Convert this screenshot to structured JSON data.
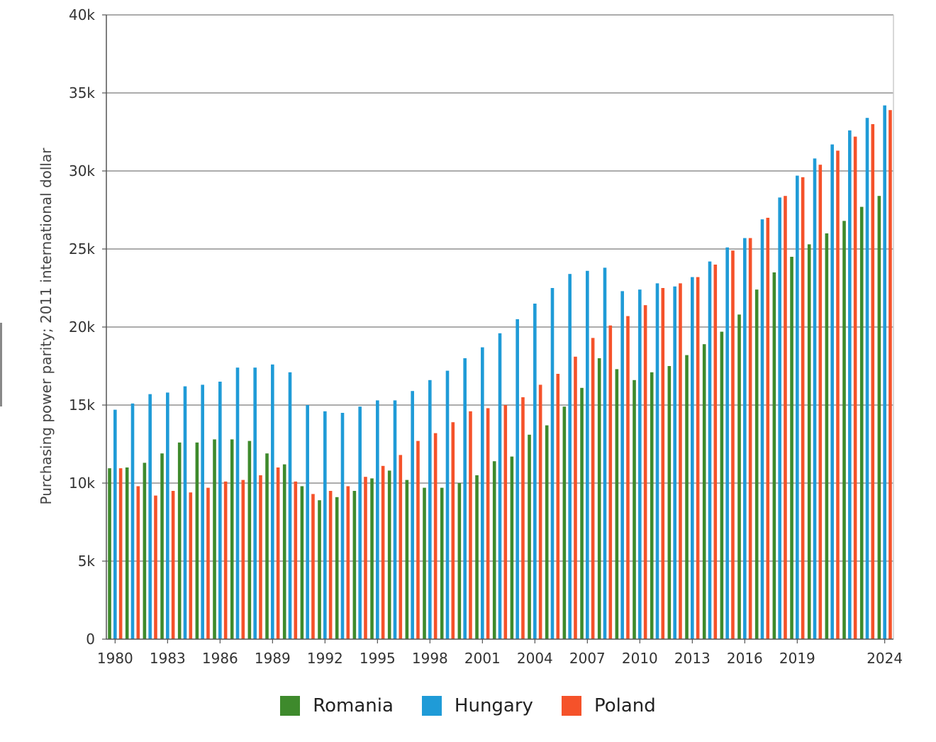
{
  "chart_data": {
    "type": "bar",
    "title": "",
    "xlabel": "",
    "ylabel": "Purchasing power parity; 2011 international dollar",
    "ylim": [
      0,
      40000
    ],
    "y_ticks": [
      {
        "value": 0,
        "label": "0"
      },
      {
        "value": 5000,
        "label": "5k"
      },
      {
        "value": 10000,
        "label": "10k"
      },
      {
        "value": 15000,
        "label": "15k"
      },
      {
        "value": 20000,
        "label": "20k"
      },
      {
        "value": 25000,
        "label": "25k"
      },
      {
        "value": 30000,
        "label": "30k"
      },
      {
        "value": 35000,
        "label": "35k"
      },
      {
        "value": 40000,
        "label": "40k"
      }
    ],
    "x_tick_labels": [
      "1980",
      "1983",
      "1986",
      "1989",
      "1992",
      "1995",
      "1998",
      "2001",
      "2004",
      "2007",
      "2010",
      "2013",
      "2016",
      "2019",
      "2024"
    ],
    "categories": [
      "1980",
      "1981",
      "1982",
      "1983",
      "1984",
      "1985",
      "1986",
      "1987",
      "1988",
      "1989",
      "1990",
      "1991",
      "1992",
      "1993",
      "1994",
      "1995",
      "1996",
      "1997",
      "1998",
      "1999",
      "2000",
      "2001",
      "2002",
      "2003",
      "2004",
      "2005",
      "2006",
      "2007",
      "2008",
      "2009",
      "2010",
      "2011",
      "2012",
      "2013",
      "2014",
      "2015",
      "2016",
      "2017",
      "2018",
      "2019",
      "2020",
      "2021",
      "2022",
      "2023",
      "2024"
    ],
    "series": [
      {
        "name": "Romania",
        "color": "#3e8a2c",
        "values": [
          10950,
          11000,
          11300,
          11900,
          12600,
          12600,
          12800,
          12800,
          12700,
          11900,
          11200,
          9800,
          8900,
          9100,
          9500,
          10300,
          10800,
          10200,
          9700,
          9700,
          10000,
          10500,
          11400,
          11700,
          13100,
          13700,
          14900,
          16100,
          18000,
          17300,
          16600,
          17100,
          17500,
          18200,
          18900,
          19700,
          20800,
          22400,
          23500,
          24500,
          25300,
          26000,
          26800,
          27700,
          28400
        ]
      },
      {
        "name": "Hungary",
        "color": "#1f9bd7",
        "values": [
          14700,
          15100,
          15700,
          15800,
          16200,
          16300,
          16500,
          17400,
          17400,
          17600,
          17100,
          15000,
          14600,
          14500,
          14900,
          15300,
          15300,
          15900,
          16600,
          17200,
          18000,
          18700,
          19600,
          20500,
          21500,
          22500,
          23400,
          23600,
          23800,
          22300,
          22400,
          22800,
          22600,
          23200,
          24200,
          25100,
          25700,
          26900,
          28300,
          29700,
          30800,
          31700,
          32600,
          33400,
          34200
        ]
      },
      {
        "name": "Poland",
        "color": "#f5522a",
        "values": [
          10950,
          9800,
          9200,
          9500,
          9400,
          9700,
          10100,
          10200,
          10500,
          11000,
          10100,
          9300,
          9500,
          9800,
          10400,
          11100,
          11800,
          12700,
          13200,
          13900,
          14600,
          14800,
          15000,
          15500,
          16300,
          17000,
          18100,
          19300,
          20100,
          20700,
          21400,
          22500,
          22800,
          23200,
          24000,
          24900,
          25700,
          27000,
          28400,
          29600,
          30400,
          31300,
          32200,
          33000,
          33900
        ]
      }
    ],
    "legend_position": "bottom-center",
    "grid": true
  }
}
